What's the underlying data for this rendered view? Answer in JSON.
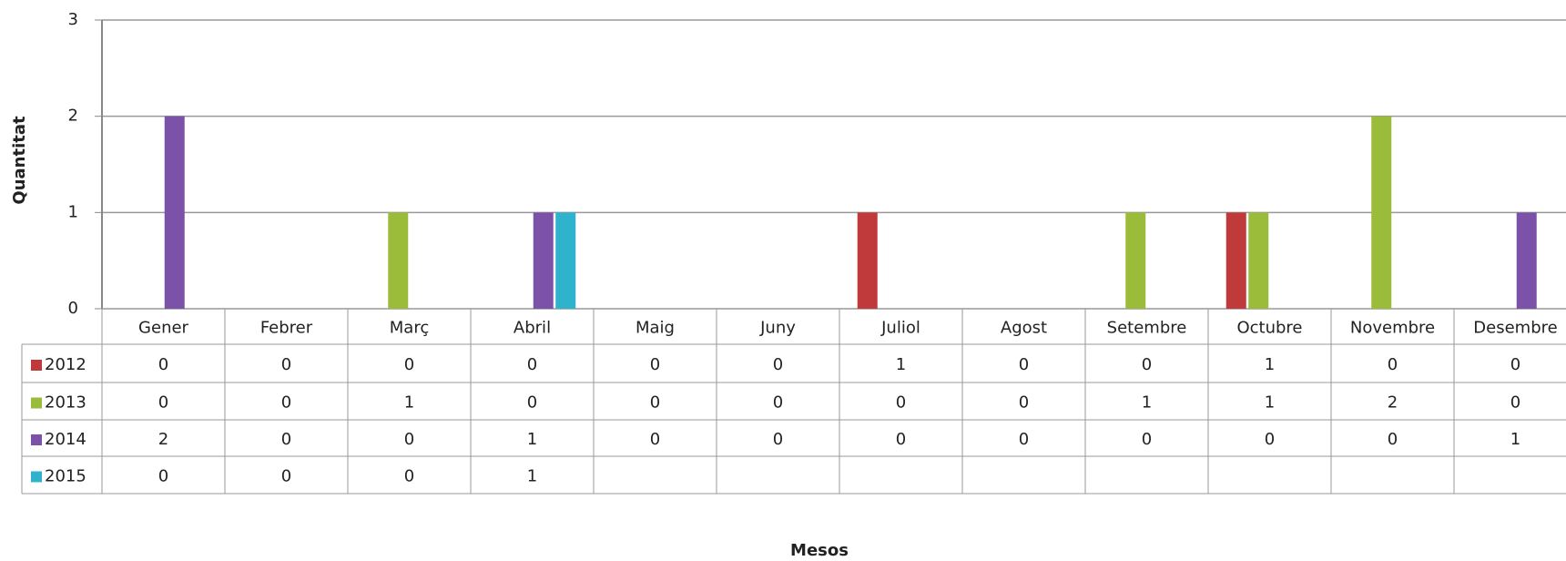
{
  "chart_data": {
    "type": "bar",
    "y_label": "Quantitat",
    "x_label": "Mesos",
    "categories": [
      "Gener",
      "Febrer",
      "Març",
      "Abril",
      "Maig",
      "Juny",
      "Juliol",
      "Agost",
      "Setembre",
      "Octubre",
      "Novembre",
      "Desembre"
    ],
    "series": [
      {
        "name": "2012",
        "color": "#c0393b",
        "values": [
          0,
          0,
          0,
          0,
          0,
          0,
          1,
          0,
          0,
          1,
          0,
          0
        ]
      },
      {
        "name": "2013",
        "color": "#9bbb3a",
        "values": [
          0,
          0,
          1,
          0,
          0,
          0,
          0,
          0,
          1,
          1,
          2,
          0
        ]
      },
      {
        "name": "2014",
        "color": "#7c52a8",
        "values": [
          2,
          0,
          0,
          1,
          0,
          0,
          0,
          0,
          0,
          0,
          0,
          1
        ]
      },
      {
        "name": "2015",
        "color": "#2fb3cc",
        "values": [
          0,
          0,
          0,
          1,
          null,
          null,
          null,
          null,
          null,
          null,
          null,
          null
        ]
      }
    ],
    "ylim": [
      0,
      3
    ],
    "yticks": [
      0,
      1,
      2,
      3
    ],
    "grid": true
  }
}
